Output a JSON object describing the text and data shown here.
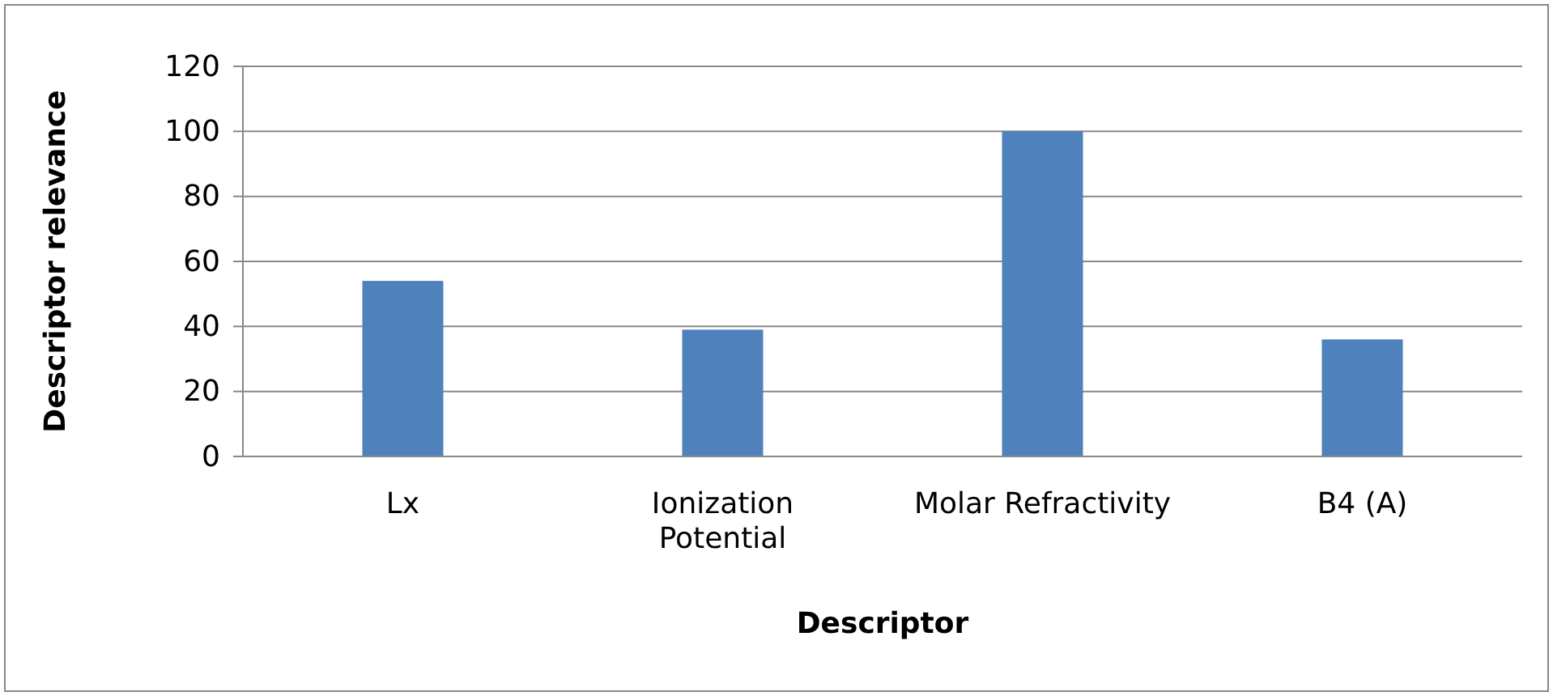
{
  "chart_data": {
    "type": "bar",
    "xlabel": "Descriptor",
    "ylabel": "Descriptor relevance",
    "categories": [
      "Lx",
      "Ionization Potential",
      "Molar Refractivity",
      "B4 (A)"
    ],
    "values": [
      54,
      39,
      100,
      36
    ],
    "color": "#4f81bd",
    "ylim": [
      0,
      120
    ],
    "yticks": [
      0,
      20,
      40,
      60,
      80,
      100,
      120
    ],
    "grid": "y"
  }
}
